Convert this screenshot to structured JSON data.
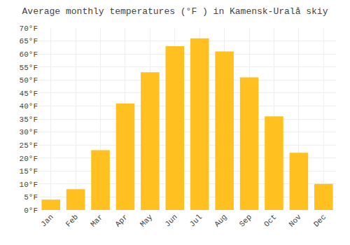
{
  "chart_data": {
    "type": "bar",
    "title": "Average monthly temperatures (°F ) in Kamensk-Uralå skiy",
    "categories": [
      "Jan",
      "Feb",
      "Mar",
      "Apr",
      "May",
      "Jun",
      "Jul",
      "Aug",
      "Sep",
      "Oct",
      "Nov",
      "Dec"
    ],
    "values": [
      4,
      8,
      23,
      41,
      53,
      63,
      66,
      61,
      51,
      36,
      22,
      10
    ],
    "color": "#FFC020",
    "ylim": [
      0,
      70
    ],
    "yticks": [
      {
        "value": 0,
        "label": "0°F"
      },
      {
        "value": 5,
        "label": "5°F"
      },
      {
        "value": 10,
        "label": "10°F"
      },
      {
        "value": 15,
        "label": "15°F"
      },
      {
        "value": 20,
        "label": "20°F"
      },
      {
        "value": 25,
        "label": "25°F"
      },
      {
        "value": 30,
        "label": "30°F"
      },
      {
        "value": 35,
        "label": "35°F"
      },
      {
        "value": 40,
        "label": "40°F"
      },
      {
        "value": 45,
        "label": "45°F"
      },
      {
        "value": 50,
        "label": "50°F"
      },
      {
        "value": 55,
        "label": "55°F"
      },
      {
        "value": 60,
        "label": "60°F"
      },
      {
        "value": 65,
        "label": "65°F"
      },
      {
        "value": 70,
        "label": "70°F"
      }
    ],
    "grid": true
  }
}
